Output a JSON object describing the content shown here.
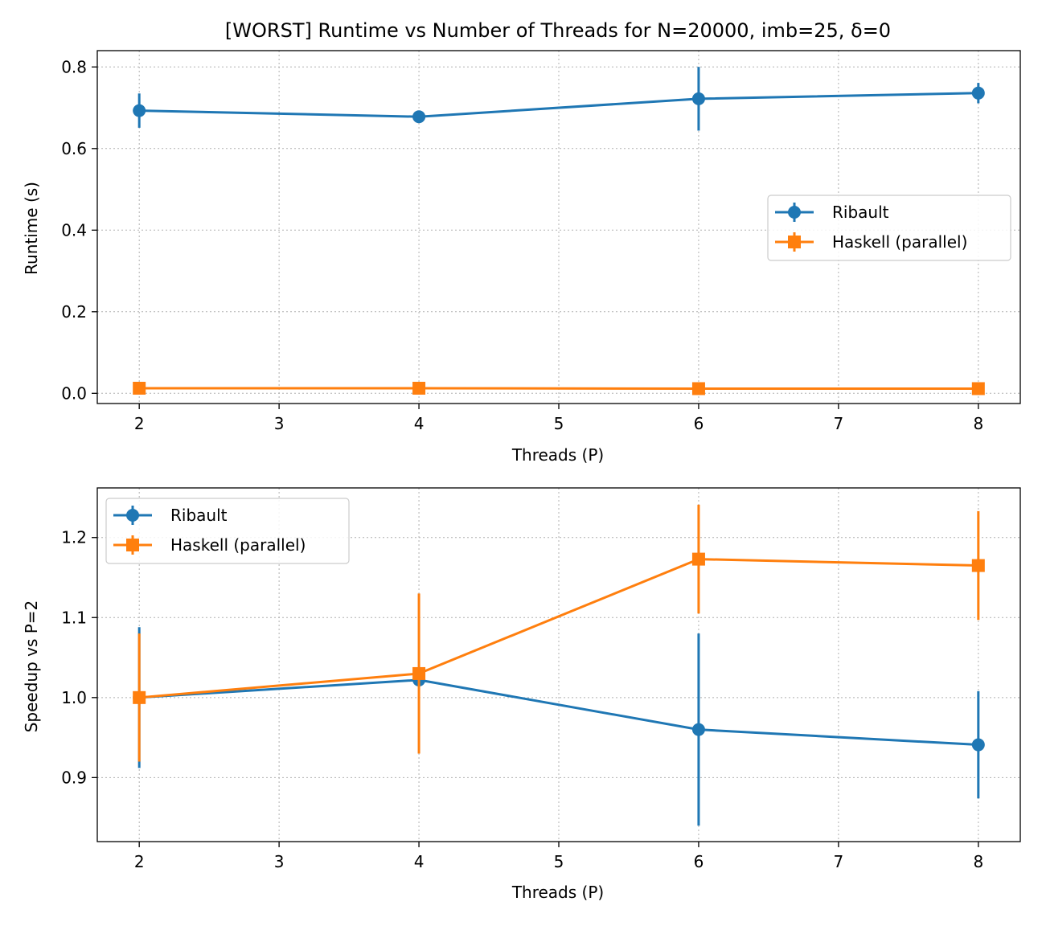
{
  "chart_data": [
    {
      "type": "line",
      "title": "[WORST] Runtime vs Number of Threads for  N=20000, imb=25, δ=0",
      "xlabel": "Threads (P)",
      "ylabel": "Runtime (s)",
      "xlim": [
        1.7,
        8.3
      ],
      "ylim": [
        -0.025,
        0.84
      ],
      "xticks": [
        2,
        3,
        4,
        5,
        6,
        7,
        8
      ],
      "yticks": [
        0.0,
        0.2,
        0.4,
        0.6,
        0.8
      ],
      "ytick_labels": [
        "0.0",
        "0.2",
        "0.4",
        "0.6",
        "0.8"
      ],
      "grid": true,
      "legend": "center-right",
      "x": [
        2,
        4,
        6,
        8
      ],
      "series": [
        {
          "name": "Ribault",
          "color": "#1f77b4",
          "marker": "circle",
          "values": [
            0.693,
            0.678,
            0.722,
            0.736
          ],
          "errors": [
            0.042,
            0.004,
            0.078,
            0.025
          ]
        },
        {
          "name": "Haskell (parallel)",
          "color": "#ff7f0e",
          "marker": "square",
          "values": [
            0.0125,
            0.0125,
            0.0115,
            0.0115
          ],
          "errors": [
            0.0008,
            0.0006,
            0.0006,
            0.0006
          ]
        }
      ]
    },
    {
      "type": "line",
      "title": "",
      "xlabel": "Threads (P)",
      "ylabel": "Speedup vs P=2",
      "xlim": [
        1.7,
        8.3
      ],
      "ylim": [
        0.82,
        1.262
      ],
      "xticks": [
        2,
        3,
        4,
        5,
        6,
        7,
        8
      ],
      "yticks": [
        0.9,
        1.0,
        1.1,
        1.2
      ],
      "ytick_labels": [
        "0.9",
        "1.0",
        "1.1",
        "1.2"
      ],
      "grid": true,
      "legend": "top-left",
      "x": [
        2,
        4,
        6,
        8
      ],
      "series": [
        {
          "name": "Ribault",
          "color": "#1f77b4",
          "marker": "circle",
          "values": [
            1.0,
            1.022,
            0.96,
            0.941
          ],
          "errors": [
            0.088,
            0.006,
            0.12,
            0.067
          ]
        },
        {
          "name": "Haskell (parallel)",
          "color": "#ff7f0e",
          "marker": "square",
          "values": [
            1.0,
            1.03,
            1.173,
            1.165
          ],
          "errors": [
            0.08,
            0.1,
            0.068,
            0.068
          ]
        }
      ]
    }
  ]
}
